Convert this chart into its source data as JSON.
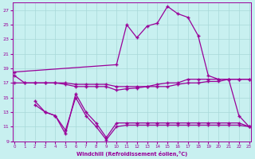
{
  "xlabel": "Windchill (Refroidissement éolien,°C)",
  "bg_color": "#c8f0f0",
  "grid_color": "#a8d8d8",
  "line_color": "#990099",
  "ylim": [
    9,
    28
  ],
  "xlim": [
    0,
    23
  ],
  "yticks": [
    9,
    11,
    13,
    15,
    17,
    19,
    21,
    23,
    25,
    27
  ],
  "xticks": [
    0,
    1,
    2,
    3,
    4,
    5,
    6,
    7,
    8,
    9,
    10,
    11,
    12,
    13,
    14,
    15,
    16,
    17,
    18,
    19,
    20,
    21,
    22,
    23
  ],
  "curve_main_x": [
    0,
    10,
    11,
    12,
    13,
    14,
    15,
    16,
    17,
    18,
    19,
    20,
    21,
    22,
    23
  ],
  "curve_main_y": [
    18.5,
    19.5,
    25.0,
    23.2,
    24.8,
    25.2,
    27.5,
    26.5,
    26.0,
    23.5,
    18.0,
    17.5,
    17.5,
    12.5,
    11.0
  ],
  "curve_flat1_x": [
    0,
    1,
    2,
    3,
    4,
    5,
    6,
    7,
    8,
    9,
    10,
    11,
    12,
    13,
    14,
    15,
    16,
    17,
    18,
    19,
    20,
    21,
    22,
    23
  ],
  "curve_flat1_y": [
    18.0,
    17.0,
    17.0,
    17.0,
    17.0,
    17.0,
    16.8,
    16.8,
    16.8,
    16.8,
    16.5,
    16.5,
    16.5,
    16.5,
    16.8,
    17.0,
    17.0,
    17.5,
    17.5,
    17.5,
    17.5,
    17.5,
    17.5,
    17.5
  ],
  "curve_flat2_x": [
    0,
    1,
    2,
    3,
    4,
    5,
    6,
    7,
    8,
    9,
    10,
    11,
    12,
    13,
    14,
    15,
    16,
    17,
    18,
    19,
    20,
    21,
    22,
    23
  ],
  "curve_flat2_y": [
    17.0,
    17.0,
    17.0,
    17.0,
    17.0,
    16.8,
    16.5,
    16.5,
    16.5,
    16.5,
    16.0,
    16.2,
    16.3,
    16.5,
    16.5,
    16.5,
    16.8,
    17.0,
    17.0,
    17.2,
    17.2,
    17.5,
    17.5,
    17.5
  ],
  "curve_low1_x": [
    2,
    3,
    4,
    5,
    6,
    7,
    8,
    9,
    10,
    11,
    12,
    13,
    14,
    15,
    16,
    17,
    18,
    19,
    20,
    21,
    22,
    23
  ],
  "curve_low1_y": [
    14.5,
    13.0,
    12.5,
    10.0,
    15.5,
    13.0,
    11.5,
    9.5,
    11.5,
    11.5,
    11.5,
    11.5,
    11.5,
    11.5,
    11.5,
    11.5,
    11.5,
    11.5,
    11.5,
    11.5,
    11.5,
    11.0
  ],
  "curve_low2_x": [
    2,
    3,
    4,
    5,
    6,
    7,
    8,
    9,
    10,
    11,
    12,
    13,
    14,
    15,
    16,
    17,
    18,
    19,
    20,
    21,
    22,
    23
  ],
  "curve_low2_y": [
    14.0,
    13.0,
    12.5,
    10.5,
    15.0,
    12.5,
    11.0,
    9.2,
    11.0,
    11.2,
    11.2,
    11.2,
    11.2,
    11.2,
    11.2,
    11.2,
    11.2,
    11.2,
    11.2,
    11.2,
    11.2,
    11.0
  ]
}
